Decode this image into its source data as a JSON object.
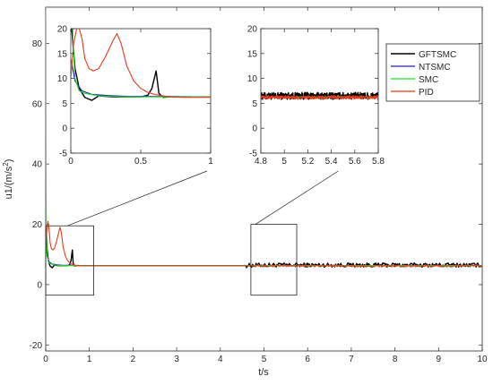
{
  "chart_data": [
    {
      "id": "main",
      "type": "line",
      "xlabel": "t/s",
      "ylabel": "u1/(m/s",
      "ylabel_sup": "2",
      "ylabel_end": ")",
      "xlim": [
        0,
        10
      ],
      "ylim": [
        -22,
        92
      ],
      "xticks": [
        0,
        1,
        2,
        3,
        4,
        5,
        6,
        7,
        8,
        9,
        10
      ],
      "yticks": [
        -20,
        0,
        20,
        40,
        60,
        80
      ],
      "grid": false,
      "legend_position": "top-right",
      "series": [
        {
          "name": "GFTSMC",
          "color": "#000000",
          "x": [
            0,
            0.03,
            0.06,
            0.1,
            0.15,
            0.2,
            0.3,
            0.4,
            0.5,
            0.55,
            0.58,
            0.61,
            0.63,
            0.66,
            0.7,
            0.8,
            1.0,
            2.0,
            4.5,
            5.0,
            6.0,
            7.0,
            8.0,
            9.0,
            10.0
          ],
          "y": [
            22,
            12,
            8,
            6.2,
            5.6,
            6.5,
            6.3,
            6.3,
            6.3,
            6.6,
            8,
            11.5,
            7,
            6.2,
            6.3,
            6.3,
            6.3,
            6.3,
            6.3,
            6.5,
            6.5,
            6.5,
            6.5,
            6.5,
            6.5
          ],
          "noise_from": 4.6,
          "noise_amp": 0.7
        },
        {
          "name": "NTSMC",
          "color": "#1f1fd6",
          "x": [
            0,
            0.03,
            0.08,
            0.15,
            0.25,
            0.4,
            0.6,
            1.0,
            3.0,
            6.0,
            10.0
          ],
          "y": [
            14,
            9.5,
            7.5,
            6.8,
            6.6,
            6.4,
            6.4,
            6.3,
            6.3,
            6.3,
            6.3
          ]
        },
        {
          "name": "SMC",
          "color": "#22dd22",
          "x": [
            0,
            0.0001,
            0.004,
            0.008,
            0.015,
            0.03,
            0.06,
            0.1,
            0.2,
            0.4,
            1.0,
            3.0,
            10.0
          ],
          "y": [
            0,
            92,
            50,
            30,
            18,
            10,
            7.5,
            7.0,
            6.5,
            6.3,
            6.3,
            6.3,
            6.3
          ]
        },
        {
          "name": "PID",
          "color": "#e8391a",
          "x": [
            0,
            0.02,
            0.05,
            0.08,
            0.1,
            0.13,
            0.16,
            0.2,
            0.25,
            0.3,
            0.33,
            0.36,
            0.4,
            0.45,
            0.5,
            0.55,
            0.6,
            0.66,
            0.72,
            0.8,
            0.9,
            1.0,
            2.0,
            5.0,
            10.0
          ],
          "y": [
            10,
            17,
            21,
            18,
            14,
            12,
            11.5,
            12,
            14.5,
            17.5,
            19,
            17,
            12.5,
            9.5,
            8,
            7.2,
            6.8,
            6.5,
            6.3,
            6.2,
            6.2,
            6.2,
            6.2,
            6.2,
            6.2
          ],
          "noise_from": 4.8,
          "noise_amp": 0.35
        }
      ]
    },
    {
      "id": "inset1",
      "type": "line",
      "xlim": [
        0,
        1
      ],
      "ylim": [
        -5,
        20
      ],
      "xticks": [
        0,
        0.5,
        1
      ],
      "xtick_labels": [
        "0",
        "0.5",
        "1"
      ],
      "yticks": [
        -5,
        0,
        5,
        10,
        15,
        20
      ]
    },
    {
      "id": "inset2",
      "type": "line",
      "xlim": [
        4.8,
        5.8
      ],
      "ylim": [
        -5,
        20
      ],
      "xticks": [
        4.8,
        5,
        5.2,
        5.4,
        5.6,
        5.8
      ],
      "xtick_labels": [
        "4.8",
        "5",
        "5.2",
        "5.4",
        "5.6",
        "5.8"
      ],
      "yticks": [
        -5,
        0,
        5,
        10,
        15,
        20
      ]
    }
  ]
}
